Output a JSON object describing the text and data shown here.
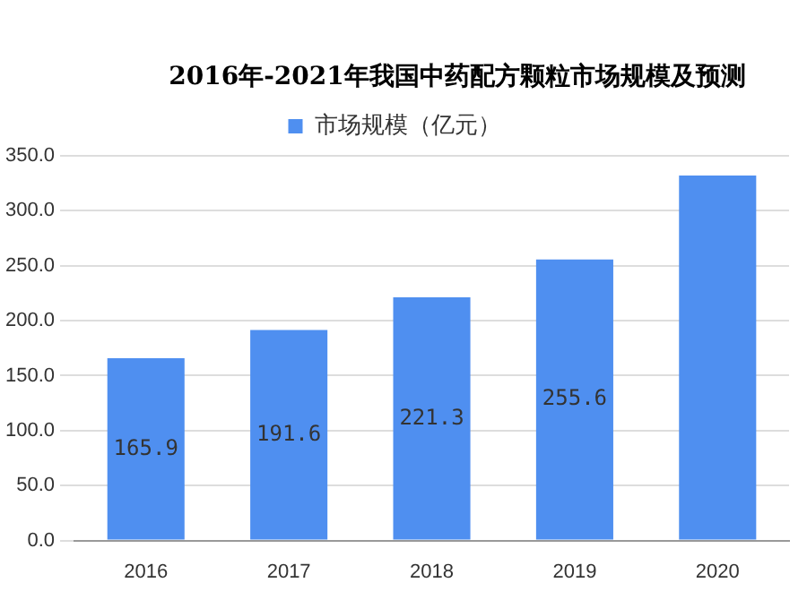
{
  "chart_data": {
    "type": "bar",
    "title": "2016年-2021年我国中药配方颗粒市场规模及预测",
    "categories": [
      "2016",
      "2017",
      "2018",
      "2019",
      "2020"
    ],
    "series": [
      {
        "name": "市场规模（亿元）",
        "color": "#4f8ff0",
        "values": [
          165.9,
          191.6,
          221.3,
          255.6,
          332
        ]
      }
    ],
    "value_labels": [
      "165.9",
      "191.6",
      "221.3",
      "255.6",
      null
    ],
    "ylim": [
      0,
      350
    ],
    "yticks": [
      {
        "value": 0,
        "label": "0.0"
      },
      {
        "value": 50,
        "label": "50.0"
      },
      {
        "value": 100,
        "label": "100.0"
      },
      {
        "value": 150,
        "label": "150.0"
      },
      {
        "value": 200,
        "label": "200.0"
      },
      {
        "value": 250,
        "label": "250.0"
      },
      {
        "value": 300,
        "label": "300.0"
      },
      {
        "value": 350,
        "label": "350.0"
      }
    ],
    "grid": "y",
    "legend": "top"
  }
}
